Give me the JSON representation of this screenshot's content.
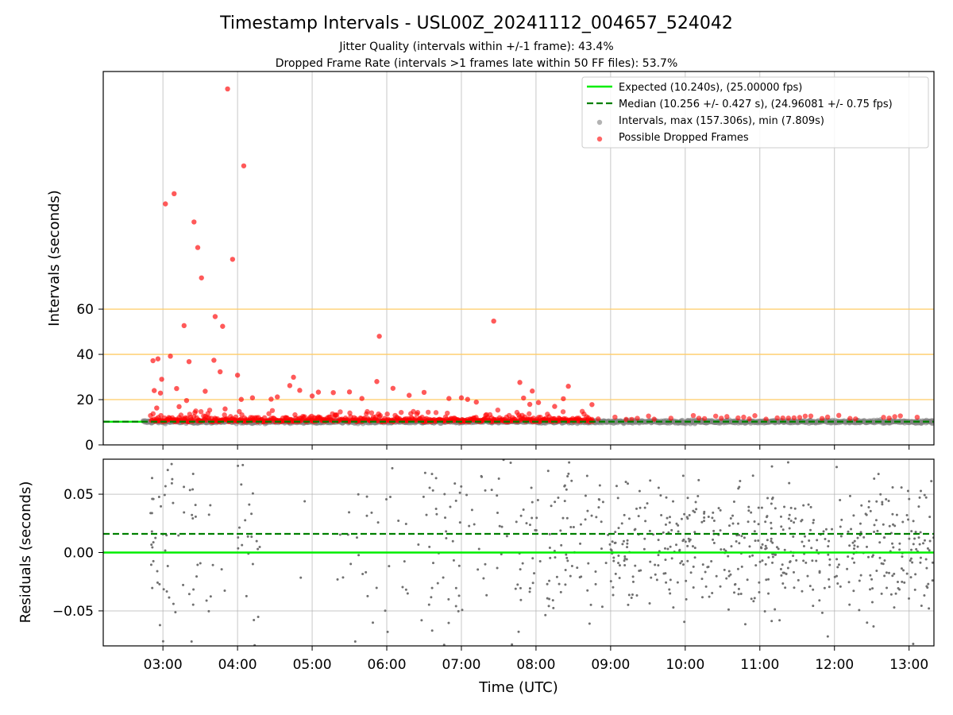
{
  "figure": {
    "title": "Timestamp Intervals - USL00Z_20241112_004657_524042",
    "subtitle_1": "Jitter Quality (intervals within +/-1 frame): 43.4%",
    "subtitle_2": "Dropped Frame Rate (intervals >1 frames late within 50 FF files): 53.7%"
  },
  "chart_data": [
    {
      "type": "scatter",
      "panel": "intervals",
      "ylabel": "Intervals (seconds)",
      "ylim": [
        0,
        165
      ],
      "yticks": [
        0,
        20,
        40,
        60
      ],
      "grid": "vertical",
      "xlim": [
        "02:12",
        "13:20"
      ],
      "expected_interval": 10.24,
      "median_interval": 10.256,
      "reference_lines": [
        20,
        40,
        60
      ],
      "legend_position": "top-right",
      "legend": [
        {
          "label": "Expected (10.240s), (25.00000 fps)",
          "kind": "line",
          "color": "#00ee00"
        },
        {
          "label": "Median (10.256 +/- 0.427 s), (24.96081 +/- 0.75 fps)",
          "kind": "dashed-line",
          "color": "#008000"
        },
        {
          "label": "Intervals, max (157.306s), min (7.809s)",
          "kind": "marker",
          "color": "#808080"
        },
        {
          "label": "Possible Dropped Frames",
          "kind": "marker",
          "color": "#ff0000"
        }
      ],
      "dropped_frames": [
        {
          "x": "02:52",
          "y": 37.2
        },
        {
          "x": "02:53",
          "y": 24.0
        },
        {
          "x": "02:55",
          "y": 16.3
        },
        {
          "x": "02:56",
          "y": 38.0
        },
        {
          "x": "02:58",
          "y": 22.9
        },
        {
          "x": "02:59",
          "y": 29.0
        },
        {
          "x": "03:02",
          "y": 106.5
        },
        {
          "x": "03:06",
          "y": 39.2
        },
        {
          "x": "03:09",
          "y": 111.0
        },
        {
          "x": "03:11",
          "y": 24.9
        },
        {
          "x": "03:13",
          "y": 16.9
        },
        {
          "x": "03:17",
          "y": 52.7
        },
        {
          "x": "03:19",
          "y": 19.6
        },
        {
          "x": "03:21",
          "y": 36.8
        },
        {
          "x": "03:25",
          "y": 98.5
        },
        {
          "x": "03:28",
          "y": 87.2
        },
        {
          "x": "03:31",
          "y": 73.8
        },
        {
          "x": "03:34",
          "y": 23.7
        },
        {
          "x": "03:41",
          "y": 37.4
        },
        {
          "x": "03:42",
          "y": 56.7
        },
        {
          "x": "03:46",
          "y": 32.3
        },
        {
          "x": "03:48",
          "y": 52.4
        },
        {
          "x": "03:50",
          "y": 15.9
        },
        {
          "x": "03:52",
          "y": 157.3
        },
        {
          "x": "03:56",
          "y": 82.0
        },
        {
          "x": "04:00",
          "y": 30.8
        },
        {
          "x": "04:03",
          "y": 20.1
        },
        {
          "x": "04:05",
          "y": 123.3
        },
        {
          "x": "04:12",
          "y": 20.8
        },
        {
          "x": "04:27",
          "y": 20.2
        },
        {
          "x": "04:32",
          "y": 21.2
        },
        {
          "x": "04:42",
          "y": 26.2
        },
        {
          "x": "04:45",
          "y": 29.9
        },
        {
          "x": "04:50",
          "y": 24.1
        },
        {
          "x": "05:00",
          "y": 21.6
        },
        {
          "x": "05:05",
          "y": 23.3
        },
        {
          "x": "05:17",
          "y": 23.1
        },
        {
          "x": "05:30",
          "y": 23.4
        },
        {
          "x": "05:40",
          "y": 20.5
        },
        {
          "x": "05:52",
          "y": 28.0
        },
        {
          "x": "05:54",
          "y": 48.0
        },
        {
          "x": "06:05",
          "y": 25.0
        },
        {
          "x": "06:18",
          "y": 21.9
        },
        {
          "x": "06:30",
          "y": 23.2
        },
        {
          "x": "06:50",
          "y": 20.5
        },
        {
          "x": "07:00",
          "y": 20.8
        },
        {
          "x": "07:05",
          "y": 20.1
        },
        {
          "x": "07:12",
          "y": 18.9
        },
        {
          "x": "07:26",
          "y": 54.7
        },
        {
          "x": "07:47",
          "y": 27.6
        },
        {
          "x": "07:50",
          "y": 20.7
        },
        {
          "x": "07:55",
          "y": 17.9
        },
        {
          "x": "07:57",
          "y": 23.8
        },
        {
          "x": "08:02",
          "y": 18.7
        },
        {
          "x": "08:15",
          "y": 17.0
        },
        {
          "x": "08:22",
          "y": 20.4
        },
        {
          "x": "08:26",
          "y": 25.9
        },
        {
          "x": "08:45",
          "y": 17.8
        }
      ]
    },
    {
      "type": "scatter",
      "panel": "residuals",
      "xlabel": "Time (UTC)",
      "ylabel": "Residuals (seconds)",
      "ylim": [
        -0.08,
        0.08
      ],
      "yticks": [
        -0.05,
        0.0,
        0.05
      ],
      "ytick_labels": [
        "−0.05",
        "0.00",
        "0.05"
      ],
      "grid": "both",
      "xlim": [
        "02:12",
        "13:20"
      ],
      "xticks": [
        "03:00",
        "04:00",
        "05:00",
        "06:00",
        "07:00",
        "08:00",
        "09:00",
        "10:00",
        "11:00",
        "12:00",
        "13:00"
      ],
      "expected_residual": 0.0,
      "median_residual": 0.016,
      "marker_color": "#808080"
    }
  ]
}
